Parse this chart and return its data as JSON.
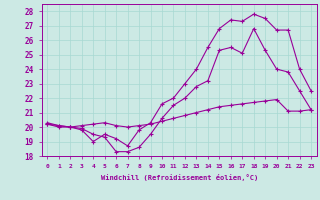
{
  "title": "",
  "xlabel": "Windchill (Refroidissement éolien,°C)",
  "ylabel": "",
  "xlim": [
    -0.5,
    23.5
  ],
  "ylim": [
    18,
    28.5
  ],
  "xticks": [
    0,
    1,
    2,
    3,
    4,
    5,
    6,
    7,
    8,
    9,
    10,
    11,
    12,
    13,
    14,
    15,
    16,
    17,
    18,
    19,
    20,
    21,
    22,
    23
  ],
  "yticks": [
    18,
    19,
    20,
    21,
    22,
    23,
    24,
    25,
    26,
    27,
    28
  ],
  "bg_color": "#cce9e4",
  "line_color": "#990099",
  "grid_color": "#a8d8d2",
  "line1_x": [
    0,
    1,
    2,
    3,
    4,
    5,
    6,
    7,
    8,
    9,
    10,
    11,
    12,
    13,
    14,
    15,
    16,
    17,
    18,
    19,
    20,
    21,
    22,
    23
  ],
  "line1_y": [
    20.3,
    20.1,
    20.0,
    19.9,
    19.5,
    19.3,
    18.3,
    18.3,
    18.6,
    19.5,
    20.6,
    21.5,
    22.0,
    22.8,
    23.2,
    25.3,
    25.5,
    25.1,
    26.8,
    25.3,
    24.0,
    23.8,
    22.5,
    21.2
  ],
  "line2_x": [
    0,
    1,
    2,
    3,
    4,
    5,
    6,
    7,
    8,
    9,
    10,
    11,
    12,
    13,
    14,
    15,
    16,
    17,
    18,
    19,
    20,
    21,
    22,
    23
  ],
  "line2_y": [
    20.2,
    20.1,
    20.0,
    19.8,
    19.0,
    19.5,
    19.2,
    18.7,
    19.8,
    20.3,
    21.6,
    22.0,
    23.0,
    24.0,
    25.5,
    26.8,
    27.4,
    27.3,
    27.8,
    27.5,
    26.7,
    26.7,
    24.0,
    22.5
  ],
  "line3_x": [
    0,
    1,
    2,
    3,
    4,
    5,
    6,
    7,
    8,
    9,
    10,
    11,
    12,
    13,
    14,
    15,
    16,
    17,
    18,
    19,
    20,
    21,
    22,
    23
  ],
  "line3_y": [
    20.2,
    20.0,
    20.0,
    20.1,
    20.2,
    20.3,
    20.1,
    20.0,
    20.1,
    20.2,
    20.4,
    20.6,
    20.8,
    21.0,
    21.2,
    21.4,
    21.5,
    21.6,
    21.7,
    21.8,
    21.9,
    21.1,
    21.1,
    21.2
  ]
}
